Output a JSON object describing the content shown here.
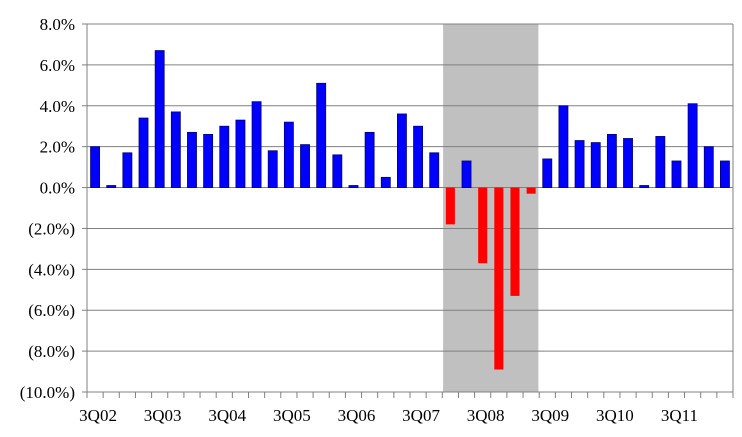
{
  "chart_data": {
    "type": "bar",
    "title": "",
    "xlabel": "",
    "ylabel": "",
    "ylim": [
      -10,
      8
    ],
    "y_tick_values": [
      -10,
      -8,
      -6,
      -4,
      -2,
      0,
      2,
      4,
      6,
      8
    ],
    "y_tick_labels": [
      "(10.0%)",
      "(8.0%)",
      "(6.0%)",
      "(4.0%)",
      "(2.0%)",
      "0.0%",
      "2.0%",
      "4.0%",
      "6.0%",
      "8.0%"
    ],
    "grid": true,
    "legend": "none",
    "categories": [
      "3Q02",
      "4Q02",
      "1Q03",
      "2Q03",
      "3Q03",
      "4Q03",
      "1Q04",
      "2Q04",
      "3Q04",
      "4Q04",
      "1Q05",
      "2Q05",
      "3Q05",
      "4Q05",
      "1Q06",
      "2Q06",
      "3Q06",
      "4Q06",
      "1Q07",
      "2Q07",
      "3Q07",
      "4Q07",
      "1Q08",
      "2Q08",
      "3Q08",
      "4Q08",
      "1Q09",
      "2Q09",
      "3Q09",
      "4Q09",
      "1Q10",
      "2Q10",
      "3Q10",
      "4Q10",
      "1Q11",
      "2Q11",
      "3Q11",
      "4Q11",
      "1Q12",
      "2Q12"
    ],
    "x_tick_labels": [
      {
        "category": "3Q02",
        "label": "3Q02"
      },
      {
        "category": "3Q03",
        "label": "3Q03"
      },
      {
        "category": "3Q04",
        "label": "3Q04"
      },
      {
        "category": "3Q05",
        "label": "3Q05"
      },
      {
        "category": "3Q06",
        "label": "3Q06"
      },
      {
        "category": "3Q07",
        "label": "3Q07"
      },
      {
        "category": "3Q08",
        "label": "3Q08"
      },
      {
        "category": "3Q09",
        "label": "3Q09"
      },
      {
        "category": "3Q10",
        "label": "3Q10"
      },
      {
        "category": "3Q11",
        "label": "3Q11"
      }
    ],
    "values": [
      2.0,
      0.1,
      1.7,
      3.4,
      6.7,
      3.7,
      2.7,
      2.6,
      3.0,
      3.3,
      4.2,
      1.8,
      3.2,
      2.1,
      5.1,
      1.6,
      0.1,
      2.7,
      0.5,
      3.6,
      3.0,
      1.7,
      -1.8,
      1.3,
      -3.7,
      -8.9,
      -5.3,
      -0.3,
      1.4,
      4.0,
      2.3,
      2.2,
      2.6,
      2.4,
      0.1,
      2.5,
      1.3,
      4.1,
      2.0,
      1.3
    ],
    "positive_color": "#0000ff",
    "negative_color": "#ff0000",
    "shaded_region": {
      "from_category": "1Q08",
      "to_category": "2Q09",
      "color": "#c0c0c0"
    }
  }
}
